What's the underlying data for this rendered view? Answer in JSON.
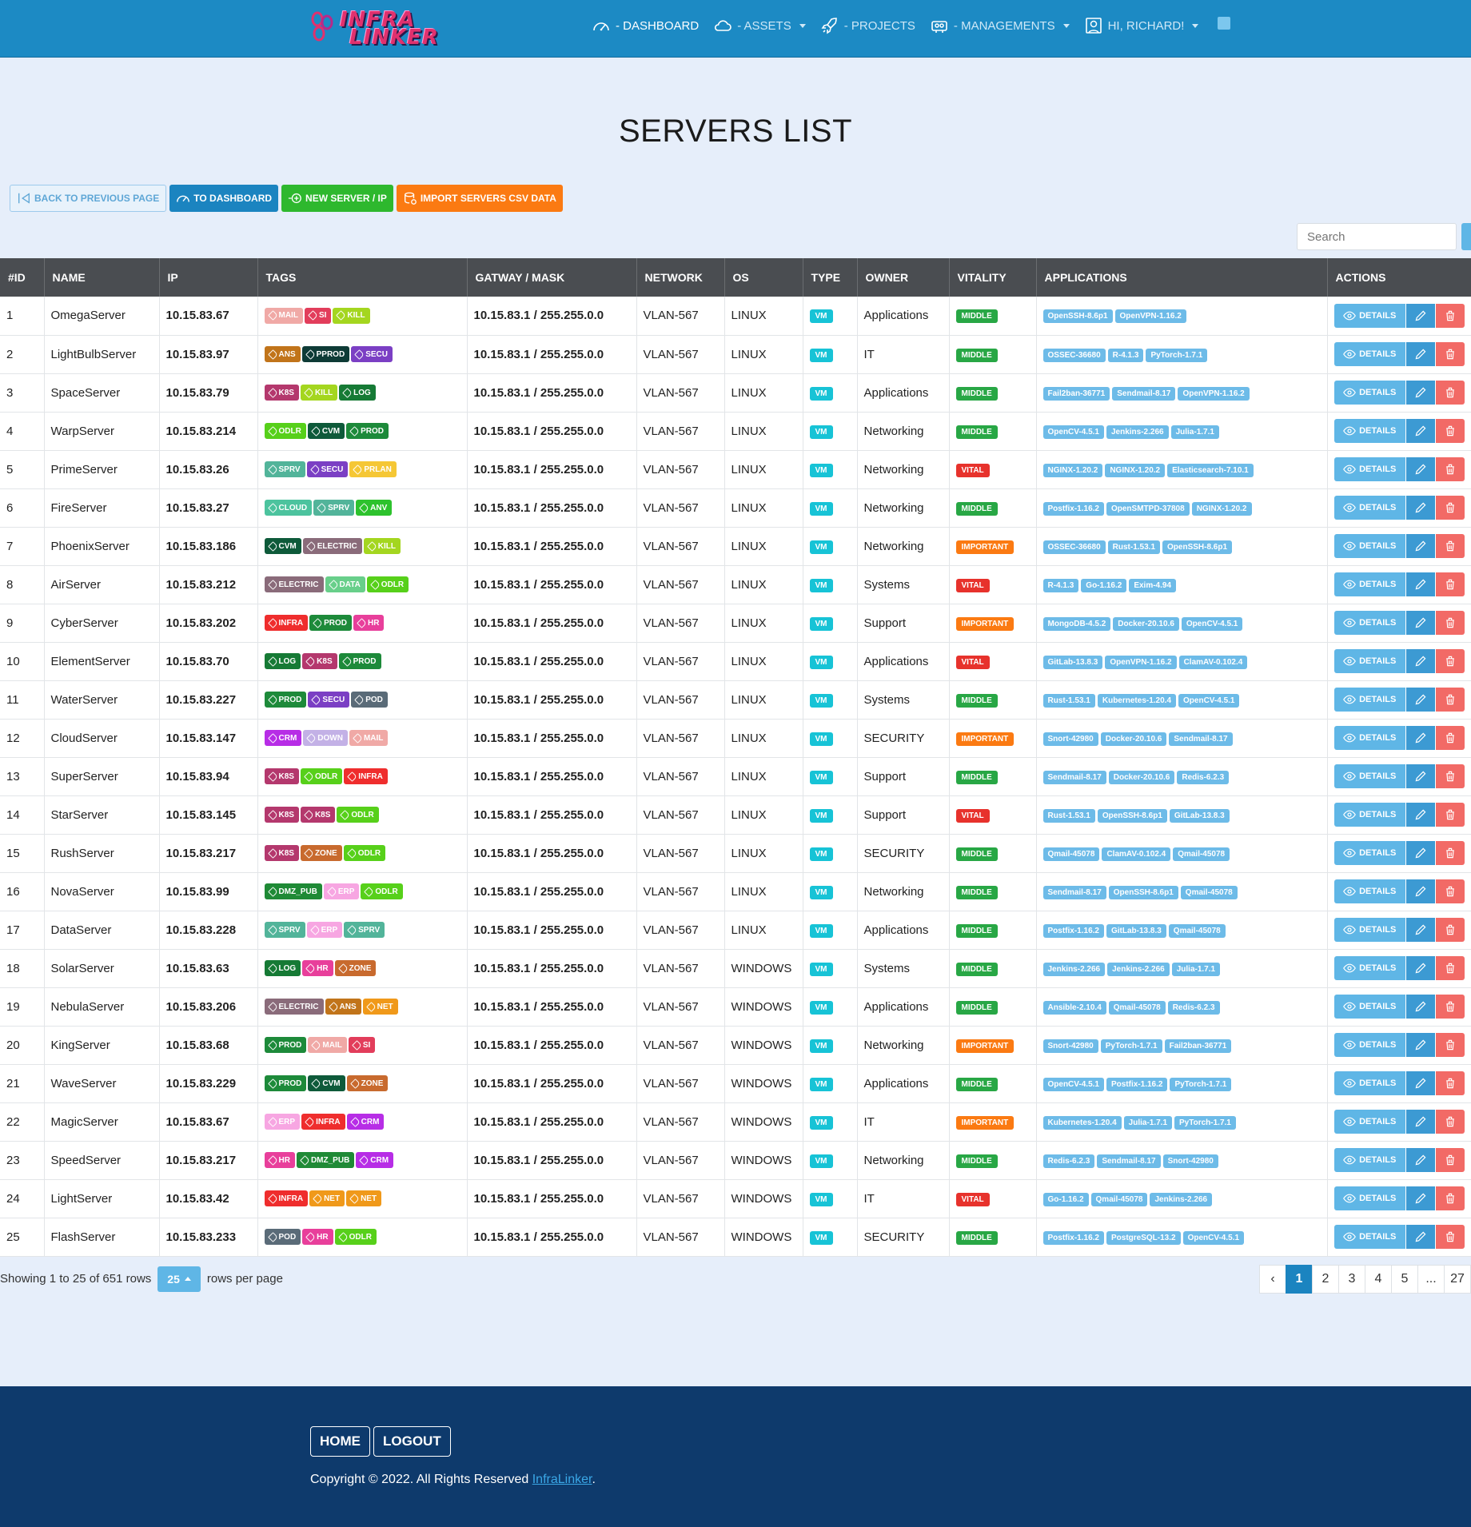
{
  "nav": {
    "items": [
      {
        "label": "- DASHBOARD",
        "icon": "gauge-icon",
        "active": true,
        "dropdown": false
      },
      {
        "label": "- ASSETS",
        "icon": "cloud-icon",
        "active": false,
        "dropdown": true
      },
      {
        "label": "- PROJECTS",
        "icon": "rocket-icon",
        "active": false,
        "dropdown": false
      },
      {
        "label": "- MANAGEMENTS",
        "icon": "robot-icon",
        "active": false,
        "dropdown": true
      },
      {
        "label": "HI, RICHARD!",
        "icon": "user-icon",
        "active": false,
        "dropdown": true
      }
    ]
  },
  "logo": {
    "line1": "INFRA",
    "line2": "LINKER"
  },
  "page": {
    "title": "SERVERS LIST"
  },
  "toolbar": {
    "back": "BACK TO PREVIOUS PAGE",
    "dashboard": "TO DASHBOARD",
    "new_server": "NEW SERVER / IP",
    "import": "IMPORT SERVERS CSV DATA"
  },
  "search": {
    "placeholder": "Search"
  },
  "table": {
    "headers": [
      "#ID",
      "NAME",
      "IP",
      "TAGS",
      "GATWAY / MASK",
      "NETWORK",
      "OS",
      "TYPE",
      "OWNER",
      "VITALITY",
      "APPLICATIONS",
      "ACTIONS"
    ],
    "details_label": "DETAILS",
    "tag_colors": {
      "MAIL": "#f0a9a6",
      "SI": "#e23d5b",
      "KILL": "#a4d61f",
      "ANS": "#c1741a",
      "PPROD": "#0e3b36",
      "SECU": "#7b3fc4",
      "K8S": "#b4386d",
      "LOG": "#167a35",
      "ODLR": "#57d01a",
      "CVM": "#0e5a3a",
      "PROD": "#1d8a3a",
      "SPRV": "#52b49a",
      "PRLAN": "#f5c735",
      "CLOUD": "#4cc39e",
      "ANV": "#2dc22d",
      "ELECTRIC": "#8a6b7a",
      "DATA": "#68cf8a",
      "INFRA": "#ef2d2d",
      "HR": "#e83f9b",
      "POD": "#5a6b78",
      "CRM": "#b72de6",
      "DOWN": "#c3b1e6",
      "ZONE": "#c86a2e",
      "DMZ_PUB": "#1f8a36",
      "ERP": "#f7a6e2",
      "NET": "#f0991a"
    },
    "rows": [
      {
        "id": "1",
        "name": "OmegaServer",
        "ip": "10.15.83.67",
        "tags": [
          "MAIL",
          "SI",
          "KILL"
        ],
        "gw": "10.15.83.1 / 255.255.0.0",
        "network": "VLAN-567",
        "os": "LINUX",
        "type": "VM",
        "owner": "Applications",
        "vitality": "MIDDLE",
        "apps": [
          "OpenSSH-8.6p1",
          "OpenVPN-1.16.2"
        ]
      },
      {
        "id": "2",
        "name": "LightBulbServer",
        "ip": "10.15.83.97",
        "tags": [
          "ANS",
          "PPROD",
          "SECU"
        ],
        "gw": "10.15.83.1 / 255.255.0.0",
        "network": "VLAN-567",
        "os": "LINUX",
        "type": "VM",
        "owner": "IT",
        "vitality": "MIDDLE",
        "apps": [
          "OSSEC-36680",
          "R-4.1.3",
          "PyTorch-1.7.1"
        ]
      },
      {
        "id": "3",
        "name": "SpaceServer",
        "ip": "10.15.83.79",
        "tags": [
          "K8S",
          "KILL",
          "LOG"
        ],
        "gw": "10.15.83.1 / 255.255.0.0",
        "network": "VLAN-567",
        "os": "LINUX",
        "type": "VM",
        "owner": "Applications",
        "vitality": "MIDDLE",
        "apps": [
          "Fail2ban-36771",
          "Sendmail-8.17",
          "OpenVPN-1.16.2"
        ]
      },
      {
        "id": "4",
        "name": "WarpServer",
        "ip": "10.15.83.214",
        "tags": [
          "ODLR",
          "CVM",
          "PROD"
        ],
        "gw": "10.15.83.1 / 255.255.0.0",
        "network": "VLAN-567",
        "os": "LINUX",
        "type": "VM",
        "owner": "Networking",
        "vitality": "MIDDLE",
        "apps": [
          "OpenCV-4.5.1",
          "Jenkins-2.266",
          "Julia-1.7.1"
        ]
      },
      {
        "id": "5",
        "name": "PrimeServer",
        "ip": "10.15.83.26",
        "tags": [
          "SPRV",
          "SECU",
          "PRLAN"
        ],
        "gw": "10.15.83.1 / 255.255.0.0",
        "network": "VLAN-567",
        "os": "LINUX",
        "type": "VM",
        "owner": "Networking",
        "vitality": "VITAL",
        "apps": [
          "NGINX-1.20.2",
          "NGINX-1.20.2",
          "Elasticsearch-7.10.1"
        ]
      },
      {
        "id": "6",
        "name": "FireServer",
        "ip": "10.15.83.27",
        "tags": [
          "CLOUD",
          "SPRV",
          "ANV"
        ],
        "gw": "10.15.83.1 / 255.255.0.0",
        "network": "VLAN-567",
        "os": "LINUX",
        "type": "VM",
        "owner": "Networking",
        "vitality": "MIDDLE",
        "apps": [
          "Postfix-1.16.2",
          "OpenSMTPD-37808",
          "NGINX-1.20.2"
        ]
      },
      {
        "id": "7",
        "name": "PhoenixServer",
        "ip": "10.15.83.186",
        "tags": [
          "CVM",
          "ELECTRIC",
          "KILL"
        ],
        "gw": "10.15.83.1 / 255.255.0.0",
        "network": "VLAN-567",
        "os": "LINUX",
        "type": "VM",
        "owner": "Networking",
        "vitality": "IMPORTANT",
        "apps": [
          "OSSEC-36680",
          "Rust-1.53.1",
          "OpenSSH-8.6p1"
        ]
      },
      {
        "id": "8",
        "name": "AirServer",
        "ip": "10.15.83.212",
        "tags": [
          "ELECTRIC",
          "DATA",
          "ODLR"
        ],
        "gw": "10.15.83.1 / 255.255.0.0",
        "network": "VLAN-567",
        "os": "LINUX",
        "type": "VM",
        "owner": "Systems",
        "vitality": "VITAL",
        "apps": [
          "R-4.1.3",
          "Go-1.16.2",
          "Exim-4.94"
        ]
      },
      {
        "id": "9",
        "name": "CyberServer",
        "ip": "10.15.83.202",
        "tags": [
          "INFRA",
          "PROD",
          "HR"
        ],
        "gw": "10.15.83.1 / 255.255.0.0",
        "network": "VLAN-567",
        "os": "LINUX",
        "type": "VM",
        "owner": "Support",
        "vitality": "IMPORTANT",
        "apps": [
          "MongoDB-4.5.2",
          "Docker-20.10.6",
          "OpenCV-4.5.1"
        ]
      },
      {
        "id": "10",
        "name": "ElementServer",
        "ip": "10.15.83.70",
        "tags": [
          "LOG",
          "K8S",
          "PROD"
        ],
        "gw": "10.15.83.1 / 255.255.0.0",
        "network": "VLAN-567",
        "os": "LINUX",
        "type": "VM",
        "owner": "Applications",
        "vitality": "VITAL",
        "apps": [
          "GitLab-13.8.3",
          "OpenVPN-1.16.2",
          "ClamAV-0.102.4"
        ]
      },
      {
        "id": "11",
        "name": "WaterServer",
        "ip": "10.15.83.227",
        "tags": [
          "PROD",
          "SECU",
          "POD"
        ],
        "gw": "10.15.83.1 / 255.255.0.0",
        "network": "VLAN-567",
        "os": "LINUX",
        "type": "VM",
        "owner": "Systems",
        "vitality": "MIDDLE",
        "apps": [
          "Rust-1.53.1",
          "Kubernetes-1.20.4",
          "OpenCV-4.5.1"
        ]
      },
      {
        "id": "12",
        "name": "CloudServer",
        "ip": "10.15.83.147",
        "tags": [
          "CRM",
          "DOWN",
          "MAIL"
        ],
        "gw": "10.15.83.1 / 255.255.0.0",
        "network": "VLAN-567",
        "os": "LINUX",
        "type": "VM",
        "owner": "SECURITY",
        "vitality": "IMPORTANT",
        "apps": [
          "Snort-42980",
          "Docker-20.10.6",
          "Sendmail-8.17"
        ]
      },
      {
        "id": "13",
        "name": "SuperServer",
        "ip": "10.15.83.94",
        "tags": [
          "K8S",
          "ODLR",
          "INFRA"
        ],
        "gw": "10.15.83.1 / 255.255.0.0",
        "network": "VLAN-567",
        "os": "LINUX",
        "type": "VM",
        "owner": "Support",
        "vitality": "MIDDLE",
        "apps": [
          "Sendmail-8.17",
          "Docker-20.10.6",
          "Redis-6.2.3"
        ]
      },
      {
        "id": "14",
        "name": "StarServer",
        "ip": "10.15.83.145",
        "tags": [
          "K8S",
          "K8S",
          "ODLR"
        ],
        "gw": "10.15.83.1 / 255.255.0.0",
        "network": "VLAN-567",
        "os": "LINUX",
        "type": "VM",
        "owner": "Support",
        "vitality": "VITAL",
        "apps": [
          "Rust-1.53.1",
          "OpenSSH-8.6p1",
          "GitLab-13.8.3"
        ]
      },
      {
        "id": "15",
        "name": "RushServer",
        "ip": "10.15.83.217",
        "tags": [
          "K8S",
          "ZONE",
          "ODLR"
        ],
        "gw": "10.15.83.1 / 255.255.0.0",
        "network": "VLAN-567",
        "os": "LINUX",
        "type": "VM",
        "owner": "SECURITY",
        "vitality": "MIDDLE",
        "apps": [
          "Qmail-45078",
          "ClamAV-0.102.4",
          "Qmail-45078"
        ]
      },
      {
        "id": "16",
        "name": "NovaServer",
        "ip": "10.15.83.99",
        "tags": [
          "DMZ_PUB",
          "ERP",
          "ODLR"
        ],
        "gw": "10.15.83.1 / 255.255.0.0",
        "network": "VLAN-567",
        "os": "LINUX",
        "type": "VM",
        "owner": "Networking",
        "vitality": "MIDDLE",
        "apps": [
          "Sendmail-8.17",
          "OpenSSH-8.6p1",
          "Qmail-45078"
        ]
      },
      {
        "id": "17",
        "name": "DataServer",
        "ip": "10.15.83.228",
        "tags": [
          "SPRV",
          "ERP",
          "SPRV"
        ],
        "gw": "10.15.83.1 / 255.255.0.0",
        "network": "VLAN-567",
        "os": "LINUX",
        "type": "VM",
        "owner": "Applications",
        "vitality": "MIDDLE",
        "apps": [
          "Postfix-1.16.2",
          "GitLab-13.8.3",
          "Qmail-45078"
        ]
      },
      {
        "id": "18",
        "name": "SolarServer",
        "ip": "10.15.83.63",
        "tags": [
          "LOG",
          "HR",
          "ZONE"
        ],
        "gw": "10.15.83.1 / 255.255.0.0",
        "network": "VLAN-567",
        "os": "WINDOWS",
        "type": "VM",
        "owner": "Systems",
        "vitality": "MIDDLE",
        "apps": [
          "Jenkins-2.266",
          "Jenkins-2.266",
          "Julia-1.7.1"
        ]
      },
      {
        "id": "19",
        "name": "NebulaServer",
        "ip": "10.15.83.206",
        "tags": [
          "ELECTRIC",
          "ANS",
          "NET"
        ],
        "gw": "10.15.83.1 / 255.255.0.0",
        "network": "VLAN-567",
        "os": "WINDOWS",
        "type": "VM",
        "owner": "Applications",
        "vitality": "MIDDLE",
        "apps": [
          "Ansible-2.10.4",
          "Qmail-45078",
          "Redis-6.2.3"
        ]
      },
      {
        "id": "20",
        "name": "KingServer",
        "ip": "10.15.83.68",
        "tags": [
          "PROD",
          "MAIL",
          "SI"
        ],
        "gw": "10.15.83.1 / 255.255.0.0",
        "network": "VLAN-567",
        "os": "WINDOWS",
        "type": "VM",
        "owner": "Networking",
        "vitality": "IMPORTANT",
        "apps": [
          "Snort-42980",
          "PyTorch-1.7.1",
          "Fail2ban-36771"
        ]
      },
      {
        "id": "21",
        "name": "WaveServer",
        "ip": "10.15.83.229",
        "tags": [
          "PROD",
          "CVM",
          "ZONE"
        ],
        "gw": "10.15.83.1 / 255.255.0.0",
        "network": "VLAN-567",
        "os": "WINDOWS",
        "type": "VM",
        "owner": "Applications",
        "vitality": "MIDDLE",
        "apps": [
          "OpenCV-4.5.1",
          "Postfix-1.16.2",
          "PyTorch-1.7.1"
        ]
      },
      {
        "id": "22",
        "name": "MagicServer",
        "ip": "10.15.83.67",
        "tags": [
          "ERP",
          "INFRA",
          "CRM"
        ],
        "gw": "10.15.83.1 / 255.255.0.0",
        "network": "VLAN-567",
        "os": "WINDOWS",
        "type": "VM",
        "owner": "IT",
        "vitality": "IMPORTANT",
        "apps": [
          "Kubernetes-1.20.4",
          "Julia-1.7.1",
          "PyTorch-1.7.1"
        ]
      },
      {
        "id": "23",
        "name": "SpeedServer",
        "ip": "10.15.83.217",
        "tags": [
          "HR",
          "DMZ_PUB",
          "CRM"
        ],
        "gw": "10.15.83.1 / 255.255.0.0",
        "network": "VLAN-567",
        "os": "WINDOWS",
        "type": "VM",
        "owner": "Networking",
        "vitality": "MIDDLE",
        "apps": [
          "Redis-6.2.3",
          "Sendmail-8.17",
          "Snort-42980"
        ]
      },
      {
        "id": "24",
        "name": "LightServer",
        "ip": "10.15.83.42",
        "tags": [
          "INFRA",
          "NET",
          "NET"
        ],
        "gw": "10.15.83.1 / 255.255.0.0",
        "network": "VLAN-567",
        "os": "WINDOWS",
        "type": "VM",
        "owner": "IT",
        "vitality": "VITAL",
        "apps": [
          "Go-1.16.2",
          "Qmail-45078",
          "Jenkins-2.266"
        ]
      },
      {
        "id": "25",
        "name": "FlashServer",
        "ip": "10.15.83.233",
        "tags": [
          "POD",
          "HR",
          "ODLR"
        ],
        "gw": "10.15.83.1 / 255.255.0.0",
        "network": "VLAN-567",
        "os": "WINDOWS",
        "type": "VM",
        "owner": "SECURITY",
        "vitality": "MIDDLE",
        "apps": [
          "Postfix-1.16.2",
          "PostgreSQL-13.2",
          "OpenCV-4.5.1"
        ]
      }
    ]
  },
  "pagination": {
    "showing": "Showing 1 to 25 of 651 rows",
    "rows_per_page_value": "25",
    "rows_per_page_label": "rows per page",
    "prev": "‹",
    "pages": [
      "1",
      "2",
      "3",
      "4",
      "5",
      "...",
      "27"
    ],
    "active_page": "1"
  },
  "footer": {
    "home": "HOME",
    "logout": "LOGOUT",
    "copyright": "Copyright © 2022. All Rights Reserved",
    "brand_link": "InfraLinker",
    "period": "."
  }
}
